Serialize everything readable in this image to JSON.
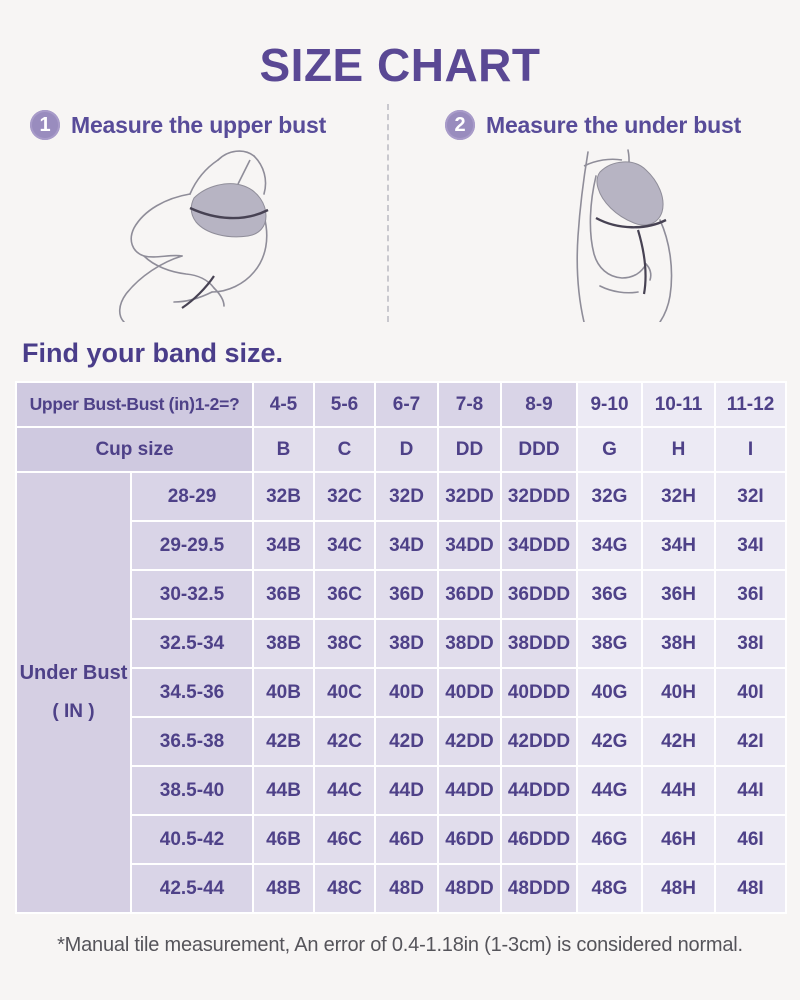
{
  "page": {
    "title": "SIZE CHART",
    "section_heading": "Find your band size.",
    "footnote": "*Manual tile measurement, An error of 0.4-1.18in (1-3cm) is considered normal."
  },
  "steps": [
    {
      "number": "1",
      "label": "Measure the upper bust"
    },
    {
      "number": "2",
      "label": "Measure the under bust"
    }
  ],
  "illustrations": [
    {
      "name": "upper-bust-measurement-figure"
    },
    {
      "name": "under-bust-measurement-figure"
    }
  ],
  "table": {
    "corner_row1_label": "Upper Bust-Bust (in)1-2=?",
    "corner_row2_label": "Cup size",
    "row_group_label_line1": "Under Bust",
    "row_group_label_line2": "( IN )",
    "diff_columns": [
      "4-5",
      "5-6",
      "6-7",
      "7-8",
      "8-9",
      "9-10",
      "10-11",
      "11-12"
    ],
    "cup_columns": [
      "B",
      "C",
      "D",
      "DD",
      "DDD",
      "G",
      "H",
      "I"
    ],
    "rows": [
      {
        "under_bust": "28-29",
        "sizes": [
          "32B",
          "32C",
          "32D",
          "32DD",
          "32DDD",
          "32G",
          "32H",
          "32I"
        ]
      },
      {
        "under_bust": "29-29.5",
        "sizes": [
          "34B",
          "34C",
          "34D",
          "34DD",
          "34DDD",
          "34G",
          "34H",
          "34I"
        ]
      },
      {
        "under_bust": "30-32.5",
        "sizes": [
          "36B",
          "36C",
          "36D",
          "36DD",
          "36DDD",
          "36G",
          "36H",
          "36I"
        ]
      },
      {
        "under_bust": "32.5-34",
        "sizes": [
          "38B",
          "38C",
          "38D",
          "38DD",
          "38DDD",
          "38G",
          "38H",
          "38I"
        ]
      },
      {
        "under_bust": "34.5-36",
        "sizes": [
          "40B",
          "40C",
          "40D",
          "40DD",
          "40DDD",
          "40G",
          "40H",
          "40I"
        ]
      },
      {
        "under_bust": "36.5-38",
        "sizes": [
          "42B",
          "42C",
          "42D",
          "42DD",
          "42DDD",
          "42G",
          "42H",
          "42I"
        ]
      },
      {
        "under_bust": "38.5-40",
        "sizes": [
          "44B",
          "44C",
          "44D",
          "44DD",
          "44DDD",
          "44G",
          "44H",
          "44I"
        ]
      },
      {
        "under_bust": "40.5-42",
        "sizes": [
          "46B",
          "46C",
          "46D",
          "46DD",
          "46DDD",
          "46G",
          "46H",
          "46I"
        ]
      },
      {
        "under_bust": "42.5-44",
        "sizes": [
          "48B",
          "48C",
          "48D",
          "48DD",
          "48DDD",
          "48G",
          "48H",
          "48I"
        ]
      }
    ]
  },
  "colors": {
    "accent_purple": "#5a4894",
    "table_text_purple": "#4e4188",
    "badge_purple": "#998cbe",
    "corner_cell": "#cfc9e0",
    "row_label_cell": "#d5cfe3",
    "medium_cell": "#e1ddec",
    "medium_header_cell": "#d9d4e7",
    "light_cell": "#eceaf4",
    "page_background": "#f7f5f4",
    "footnote_gray": "#55545a"
  }
}
